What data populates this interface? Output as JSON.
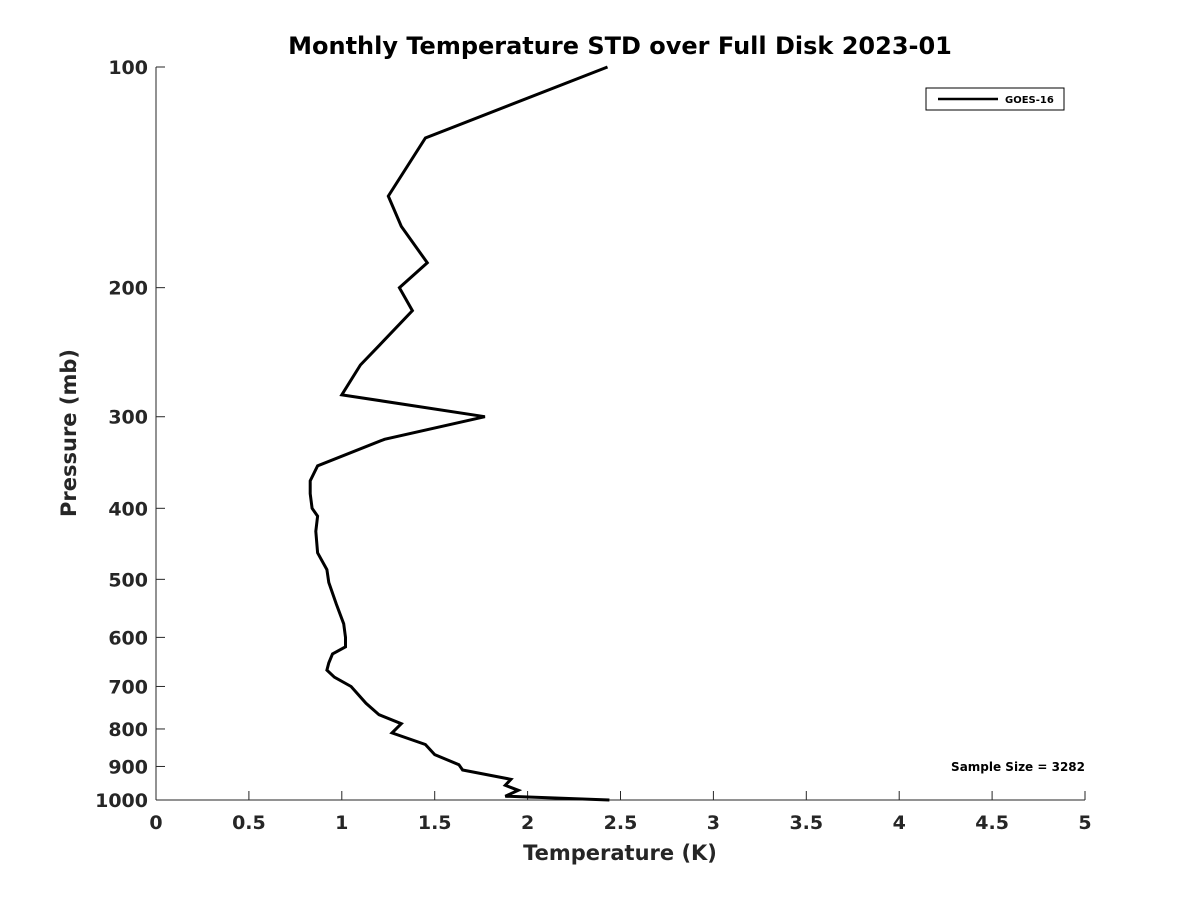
{
  "chart_data": {
    "type": "line",
    "title": "Monthly Temperature STD over Full Disk  2023-01",
    "xlabel": "Temperature (K)",
    "ylabel": "Pressure (mb)",
    "xlim": [
      0,
      5
    ],
    "ylim": [
      100,
      1000
    ],
    "yscale": "log",
    "yreversed": true,
    "xticks": [
      0,
      0.5,
      1,
      1.5,
      2,
      2.5,
      3,
      3.5,
      4,
      4.5,
      5
    ],
    "xtick_labels": [
      "0",
      "0.5",
      "1",
      "1.5",
      "2",
      "2.5",
      "3",
      "3.5",
      "4",
      "4.5",
      "5"
    ],
    "yticks": [
      100,
      200,
      300,
      400,
      500,
      600,
      700,
      800,
      900,
      1000
    ],
    "ytick_labels": [
      "100",
      "200",
      "300",
      "400",
      "500",
      "600",
      "700",
      "800",
      "900",
      "1000"
    ],
    "grid": false,
    "legend_position": "top-right",
    "annotation": "Sample Size = 3282",
    "series": [
      {
        "name": "GOES-16",
        "color": "#000000",
        "x": [
          2.43,
          1.45,
          1.25,
          1.32,
          1.46,
          1.31,
          1.38,
          1.2,
          1.1,
          1.0,
          1.77,
          1.23,
          0.87,
          0.83,
          0.83,
          0.84,
          0.87,
          0.86,
          0.87,
          0.92,
          0.93,
          0.97,
          1.01,
          1.02,
          1.02,
          0.95,
          0.93,
          0.92,
          0.96,
          1.05,
          1.13,
          1.2,
          1.32,
          1.27,
          1.45,
          1.5,
          1.63,
          1.65,
          1.91,
          1.88,
          1.95,
          1.88,
          2.44
        ],
        "y": [
          100,
          125,
          150,
          165,
          185,
          200,
          215,
          240,
          255,
          280,
          300,
          322,
          350,
          367,
          382,
          400,
          410,
          430,
          460,
          485,
          505,
          540,
          575,
          600,
          618,
          632,
          650,
          665,
          680,
          700,
          738,
          765,
          787,
          810,
          840,
          867,
          895,
          910,
          937,
          955,
          970,
          988,
          1000
        ]
      }
    ]
  }
}
